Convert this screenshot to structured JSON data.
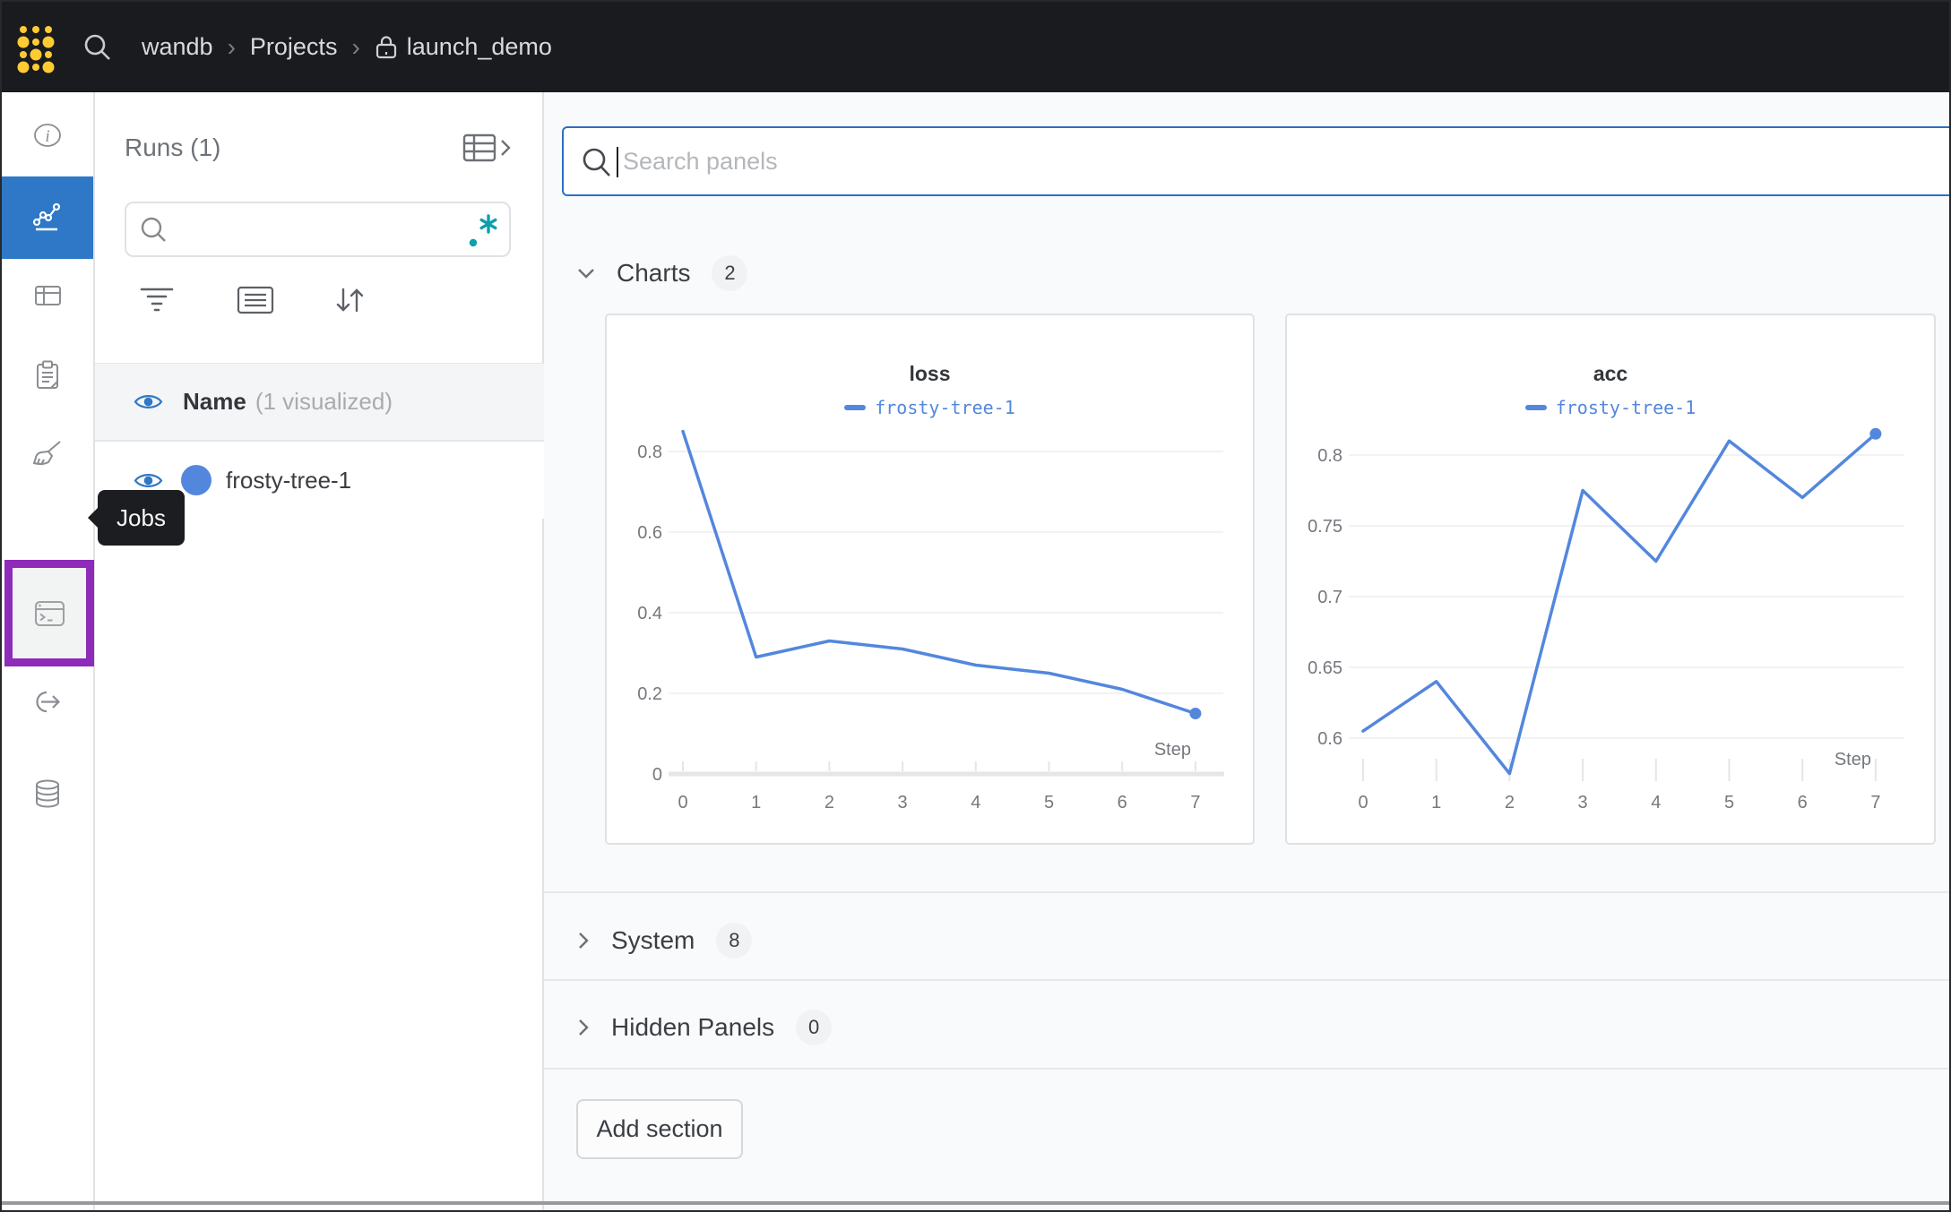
{
  "topbar": {
    "breadcrumb": {
      "items": [
        "wandb",
        "Projects",
        "launch_demo"
      ],
      "separator": "›"
    }
  },
  "sidebar": {
    "items": [
      {
        "id": "overview",
        "icon": "info-icon"
      },
      {
        "id": "workspace",
        "icon": "line-chart-icon",
        "active": true
      },
      {
        "id": "table",
        "icon": "table-icon"
      },
      {
        "id": "reports",
        "icon": "clipboard-icon"
      },
      {
        "id": "sweeps",
        "icon": "broom-icon"
      },
      {
        "id": "jobs",
        "icon": "terminal-icon",
        "highlighted": true
      },
      {
        "id": "launch",
        "icon": "link-arrow-icon"
      },
      {
        "id": "artifacts",
        "icon": "database-icon"
      }
    ],
    "tooltip": "Jobs"
  },
  "runs_panel": {
    "title": "Runs (1)",
    "search_value": "",
    "header": {
      "label": "Name",
      "suffix": "(1 visualized)"
    },
    "runs": [
      {
        "name": "frosty-tree-1",
        "color": "#5387dd",
        "visible": true
      }
    ]
  },
  "main": {
    "search_placeholder": "Search panels",
    "sections": [
      {
        "label": "Charts",
        "count": "2",
        "expanded": true
      },
      {
        "label": "System",
        "count": "8",
        "expanded": false
      },
      {
        "label": "Hidden Panels",
        "count": "0",
        "expanded": false
      }
    ],
    "add_section": "Add section"
  },
  "chart_data": [
    {
      "type": "line",
      "title": "loss",
      "x": [
        0,
        1,
        2,
        3,
        4,
        5,
        6,
        7
      ],
      "series": [
        {
          "name": "frosty-tree-1",
          "values": [
            0.85,
            0.29,
            0.33,
            0.31,
            0.27,
            0.25,
            0.21,
            0.15
          ]
        }
      ],
      "xlabel": "Step",
      "yticks": [
        0,
        0.2,
        0.4,
        0.6,
        0.8
      ],
      "ylim": [
        0,
        0.9
      ],
      "line_color": "#5387dd",
      "grid": true,
      "legend_position": "top"
    },
    {
      "type": "line",
      "title": "acc",
      "x": [
        0,
        1,
        2,
        3,
        4,
        5,
        6,
        7
      ],
      "series": [
        {
          "name": "frosty-tree-1",
          "values": [
            0.605,
            0.64,
            0.575,
            0.775,
            0.725,
            0.81,
            0.77,
            0.815
          ]
        }
      ],
      "xlabel": "Step",
      "yticks": [
        0.6,
        0.65,
        0.7,
        0.75,
        0.8
      ],
      "ylim": [
        0.565,
        0.825
      ],
      "line_color": "#5387dd",
      "grid": true,
      "legend_position": "top"
    }
  ],
  "colors": {
    "topbar_bg": "#191b1f",
    "logo_gold": "#ffcb33",
    "accent_blue": "#2e78c7",
    "run_blue": "#5387dd",
    "highlight_purple": "#8e2bb8",
    "regex_teal": "#0e9fae",
    "focus_border": "#2d6fc4"
  }
}
